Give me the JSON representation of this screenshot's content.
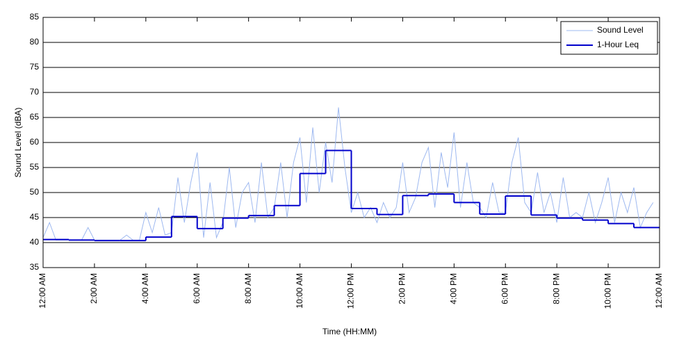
{
  "chart_data": {
    "type": "line",
    "xlabel": "Time (HH:MM)",
    "ylabel": "Sound Level (dBA)",
    "xlim": [
      0,
      24
    ],
    "xticks": [
      {
        "value": 0,
        "label": "12:00 AM"
      },
      {
        "value": 2,
        "label": "2:00 AM"
      },
      {
        "value": 4,
        "label": "4:00 AM"
      },
      {
        "value": 6,
        "label": "6:00 AM"
      },
      {
        "value": 8,
        "label": "8:00 AM"
      },
      {
        "value": 10,
        "label": "10:00 AM"
      },
      {
        "value": 12,
        "label": "12:00 PM"
      },
      {
        "value": 14,
        "label": "2:00 PM"
      },
      {
        "value": 16,
        "label": "4:00 PM"
      },
      {
        "value": 18,
        "label": "6:00 PM"
      },
      {
        "value": 20,
        "label": "8:00 PM"
      },
      {
        "value": 22,
        "label": "10:00 PM"
      },
      {
        "value": 24,
        "label": "12:00 AM"
      }
    ],
    "ylim": [
      35,
      85
    ],
    "yticks": [
      35,
      40,
      45,
      50,
      55,
      60,
      65,
      70,
      75,
      80,
      85
    ],
    "grid": true,
    "legend": "upper right",
    "series": [
      {
        "name": "Sound Level",
        "color": "#9db8f0",
        "style": "line",
        "x": [
          0,
          0.25,
          0.5,
          0.75,
          1,
          1.25,
          1.5,
          1.75,
          2,
          2.25,
          2.5,
          2.75,
          3,
          3.25,
          3.5,
          3.75,
          4,
          4.25,
          4.5,
          4.75,
          5,
          5.25,
          5.5,
          5.75,
          6,
          6.25,
          6.5,
          6.75,
          7,
          7.25,
          7.5,
          7.75,
          8,
          8.25,
          8.5,
          8.75,
          9,
          9.25,
          9.5,
          9.75,
          10,
          10.25,
          10.5,
          10.75,
          11,
          11.25,
          11.5,
          11.75,
          12,
          12.25,
          12.5,
          12.75,
          13,
          13.25,
          13.5,
          13.75,
          14,
          14.25,
          14.5,
          14.75,
          15,
          15.25,
          15.5,
          15.75,
          16,
          16.25,
          16.5,
          16.75,
          17,
          17.25,
          17.5,
          17.75,
          18,
          18.25,
          18.5,
          18.75,
          19,
          19.25,
          19.5,
          19.75,
          20,
          20.25,
          20.5,
          20.75,
          21,
          21.25,
          21.5,
          21.75,
          22,
          22.25,
          22.5,
          22.75,
          23,
          23.25,
          23.5,
          23.75
        ],
        "values": [
          41,
          44,
          40.5,
          40.5,
          40.5,
          40.5,
          40.5,
          43,
          40.5,
          40.5,
          40.5,
          40.5,
          40.5,
          41.5,
          40.5,
          40.5,
          46,
          42,
          47,
          41.5,
          42,
          53,
          44,
          52,
          58,
          41,
          52,
          41,
          44,
          55,
          43,
          50,
          52,
          44,
          56,
          45,
          47,
          56,
          45,
          56,
          61,
          48,
          63,
          50,
          60,
          52,
          67,
          55,
          46,
          50,
          45,
          47,
          44,
          48,
          45,
          47,
          56,
          46,
          49,
          56,
          59,
          47,
          58,
          51,
          62,
          47,
          56,
          48,
          47,
          45,
          52,
          46,
          46,
          56,
          61,
          48,
          46,
          54,
          46,
          50,
          44,
          53,
          45,
          46,
          45,
          50,
          44,
          48,
          53,
          44,
          50,
          46,
          51,
          43,
          46,
          48
        ]
      },
      {
        "name": "1-Hour Leq",
        "color": "#0000cc",
        "style": "step",
        "x": [
          0,
          1,
          2,
          3,
          4,
          5,
          6,
          7,
          8,
          9,
          10,
          11,
          12,
          13,
          14,
          15,
          16,
          17,
          18,
          19,
          20,
          21,
          22,
          23
        ],
        "values": [
          40.6,
          40.5,
          40.4,
          40.4,
          41.1,
          45.2,
          42.8,
          44.9,
          45.4,
          47.4,
          53.8,
          58.4,
          46.8,
          45.6,
          49.4,
          49.7,
          48.0,
          45.7,
          49.3,
          45.5,
          44.9,
          44.5,
          43.8,
          43.0
        ]
      }
    ]
  }
}
